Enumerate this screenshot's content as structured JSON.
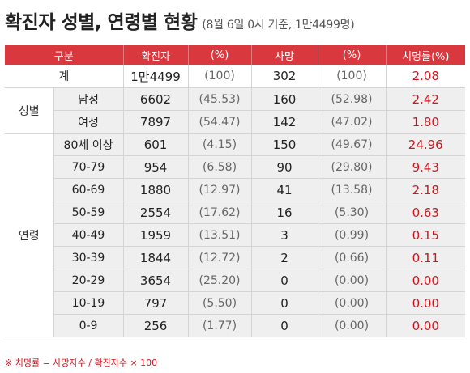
{
  "title": {
    "main": "확진자 성별, 연령별 현황",
    "sub": "(8월 6일 0시 기준, 1만4499명)"
  },
  "table": {
    "headers": [
      "구분",
      "확진자",
      "(%)",
      "사망",
      "(%)",
      "치명률(%)"
    ],
    "total": {
      "label": "계",
      "cases": "1만4499",
      "cases_pct": "(100)",
      "deaths": "302",
      "deaths_pct": "(100)",
      "fatality": "2.08"
    },
    "groups": [
      {
        "label": "성별",
        "rows": [
          {
            "label": "남성",
            "cases": "6602",
            "cases_pct": "(45.53)",
            "deaths": "160",
            "deaths_pct": "(52.98)",
            "fatality": "2.42"
          },
          {
            "label": "여성",
            "cases": "7897",
            "cases_pct": "(54.47)",
            "deaths": "142",
            "deaths_pct": "(47.02)",
            "fatality": "1.80"
          }
        ]
      },
      {
        "label": "연령",
        "rows": [
          {
            "label": "80세 이상",
            "cases": "601",
            "cases_pct": "(4.15)",
            "deaths": "150",
            "deaths_pct": "(49.67)",
            "fatality": "24.96"
          },
          {
            "label": "70-79",
            "cases": "954",
            "cases_pct": "(6.58)",
            "deaths": "90",
            "deaths_pct": "(29.80)",
            "fatality": "9.43"
          },
          {
            "label": "60-69",
            "cases": "1880",
            "cases_pct": "(12.97)",
            "deaths": "41",
            "deaths_pct": "(13.58)",
            "fatality": "2.18"
          },
          {
            "label": "50-59",
            "cases": "2554",
            "cases_pct": "(17.62)",
            "deaths": "16",
            "deaths_pct": "(5.30)",
            "fatality": "0.63"
          },
          {
            "label": "40-49",
            "cases": "1959",
            "cases_pct": "(13.51)",
            "deaths": "3",
            "deaths_pct": "(0.99)",
            "fatality": "0.15"
          },
          {
            "label": "30-39",
            "cases": "1844",
            "cases_pct": "(12.72)",
            "deaths": "2",
            "deaths_pct": "(0.66)",
            "fatality": "0.11"
          },
          {
            "label": "20-29",
            "cases": "3654",
            "cases_pct": "(25.20)",
            "deaths": "0",
            "deaths_pct": "(0.00)",
            "fatality": "0.00"
          },
          {
            "label": "10-19",
            "cases": "797",
            "cases_pct": "(5.50)",
            "deaths": "0",
            "deaths_pct": "(0.00)",
            "fatality": "0.00"
          },
          {
            "label": "0-9",
            "cases": "256",
            "cases_pct": "(1.77)",
            "deaths": "0",
            "deaths_pct": "(0.00)",
            "fatality": "0.00"
          }
        ]
      }
    ]
  },
  "footnote": "※ 치명률 = 사망자수 / 확진자수 × 100",
  "colors": {
    "header_bg": "#d9383f",
    "fatality_text": "#d0161d",
    "row_gray": "#efefef"
  }
}
